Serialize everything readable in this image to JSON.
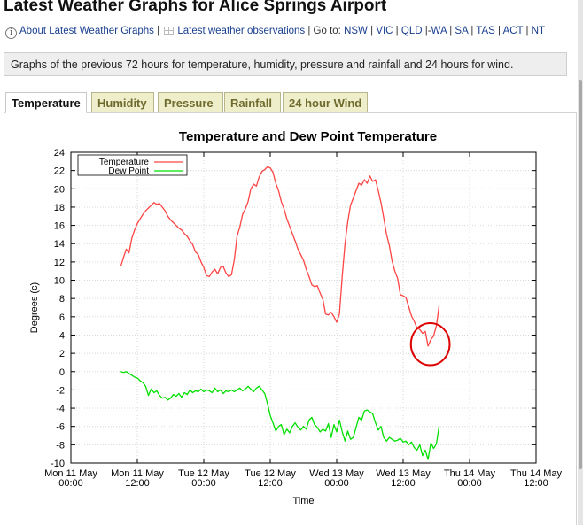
{
  "page": {
    "title": "Latest Weather Graphs for Alice Springs Airport",
    "about_link": "About Latest Weather Graphs",
    "sep1": " | ",
    "obs_link": "Latest weather observations",
    "goto_label": " | Go to: ",
    "states": [
      "NSW",
      "VIC",
      "QLD",
      "WA",
      "SA",
      "TAS",
      "ACT",
      "NT"
    ],
    "notice": "Graphs of the previous 72 hours for temperature, humidity, pressure and rainfall and 24 hours for wind."
  },
  "tabs": [
    {
      "label": "Temperature",
      "active": true
    },
    {
      "label": "Humidity",
      "active": false
    },
    {
      "label": "Pressure",
      "active": false
    },
    {
      "label": "Rainfall",
      "active": false
    },
    {
      "label": "24 hour Wind",
      "active": false
    }
  ],
  "colors": {
    "temperature": "#ff4444",
    "dew_point": "#00e000",
    "annotation": "#dd0000",
    "tab_bg": "#efeecb",
    "tab_text": "#6f6a2d",
    "link": "#1a3f8f"
  },
  "icons": {
    "info": "info-circle-icon",
    "table": "table-grid-icon"
  },
  "chart_data": {
    "type": "line",
    "title": "Temperature and Dew Point Temperature",
    "xlabel": "Time",
    "ylabel": "Degrees (c)",
    "xlim": [
      0,
      84
    ],
    "ylim": [
      -10,
      24
    ],
    "y_ticks": [
      24,
      22,
      20,
      18,
      16,
      14,
      12,
      10,
      8,
      6,
      4,
      2,
      0,
      -2,
      -4,
      -6,
      -8,
      -10
    ],
    "x_ticks": [
      {
        "h": 0,
        "line1": "Mon 11 May",
        "line2": "00:00"
      },
      {
        "h": 12,
        "line1": "Mon 11 May",
        "line2": "12:00"
      },
      {
        "h": 24,
        "line1": "Tue 12 May",
        "line2": "00:00"
      },
      {
        "h": 36,
        "line1": "Tue 12 May",
        "line2": "12:00"
      },
      {
        "h": 48,
        "line1": "Wed 13 May",
        "line2": "00:00"
      },
      {
        "h": 60,
        "line1": "Wed 13 May",
        "line2": "12:00"
      },
      {
        "h": 72,
        "line1": "Thu 14 May",
        "line2": "00:00"
      },
      {
        "h": 84,
        "line1": "Thu 14 May",
        "line2": "12:00"
      }
    ],
    "x_unit": "hours since Mon 11 May 00:00",
    "grid": true,
    "legend_position": "top-left",
    "series": [
      {
        "name": "Temperature",
        "color": "#ff4444",
        "points": [
          [
            9,
            11.5
          ],
          [
            9.5,
            12.5
          ],
          [
            10,
            13.4
          ],
          [
            10.5,
            13
          ],
          [
            11,
            14.6
          ],
          [
            11.5,
            15.5
          ],
          [
            12,
            16.2
          ],
          [
            12.5,
            16.7
          ],
          [
            13,
            17.2
          ],
          [
            13.5,
            17.6
          ],
          [
            14,
            17.9
          ],
          [
            14.5,
            18.2
          ],
          [
            15,
            18.5
          ],
          [
            15.5,
            18.3
          ],
          [
            16,
            18.4
          ],
          [
            16.5,
            18.0
          ],
          [
            17,
            17.6
          ],
          [
            17.5,
            17.0
          ],
          [
            18,
            16.6
          ],
          [
            18.5,
            16.3
          ],
          [
            19,
            16.0
          ],
          [
            19.5,
            15.7
          ],
          [
            20,
            15.5
          ],
          [
            20.5,
            15.1
          ],
          [
            21,
            14.8
          ],
          [
            21.5,
            14.3
          ],
          [
            22,
            13.9
          ],
          [
            22.5,
            13.1
          ],
          [
            23,
            12.8
          ],
          [
            23.5,
            12.0
          ],
          [
            24,
            11.4
          ],
          [
            24.5,
            10.5
          ],
          [
            25,
            10.4
          ],
          [
            25.5,
            10.9
          ],
          [
            26,
            11.2
          ],
          [
            26.5,
            10.7
          ],
          [
            27,
            11.4
          ],
          [
            27.5,
            11.5
          ],
          [
            28,
            10.8
          ],
          [
            28.5,
            10.4
          ],
          [
            29,
            10.6
          ],
          [
            29.5,
            12.2
          ],
          [
            30,
            14.8
          ],
          [
            30.5,
            15.8
          ],
          [
            31,
            17.2
          ],
          [
            31.5,
            17.8
          ],
          [
            32,
            18.6
          ],
          [
            32.5,
            20.0
          ],
          [
            33,
            20.5
          ],
          [
            33.5,
            20.3
          ],
          [
            34,
            21.3
          ],
          [
            34.5,
            21.9
          ],
          [
            35,
            22.1
          ],
          [
            35.5,
            22.4
          ],
          [
            36,
            22.3
          ],
          [
            36.5,
            21.8
          ],
          [
            37,
            20.6
          ],
          [
            37.5,
            19.8
          ],
          [
            38,
            18.6
          ],
          [
            38.5,
            17.8
          ],
          [
            39,
            16.7
          ],
          [
            39.5,
            15.9
          ],
          [
            40,
            15.1
          ],
          [
            40.5,
            14.3
          ],
          [
            41,
            13.4
          ],
          [
            41.5,
            12.8
          ],
          [
            42,
            12.2
          ],
          [
            42.5,
            11.2
          ],
          [
            43,
            10.4
          ],
          [
            43.5,
            9.5
          ],
          [
            44,
            9.3
          ],
          [
            44.5,
            9.4
          ],
          [
            45,
            8.6
          ],
          [
            45.5,
            7.9
          ],
          [
            46,
            6.3
          ],
          [
            46.5,
            6.2
          ],
          [
            47,
            6.5
          ],
          [
            47.5,
            6.0
          ],
          [
            48,
            5.4
          ],
          [
            48.5,
            6.3
          ],
          [
            49,
            10.5
          ],
          [
            49.5,
            14.0
          ],
          [
            50,
            16.4
          ],
          [
            50.5,
            18.2
          ],
          [
            51,
            19.0
          ],
          [
            51.5,
            19.8
          ],
          [
            52,
            20.6
          ],
          [
            52.5,
            20.4
          ],
          [
            53,
            21.0
          ],
          [
            53.5,
            20.6
          ],
          [
            54,
            21.4
          ],
          [
            54.5,
            20.8
          ],
          [
            55,
            21.0
          ],
          [
            55.5,
            19.8
          ],
          [
            56,
            18.5
          ],
          [
            56.5,
            16.8
          ],
          [
            57,
            15.0
          ],
          [
            57.5,
            13.8
          ],
          [
            58,
            12.1
          ],
          [
            58.5,
            11.0
          ],
          [
            59,
            10.2
          ],
          [
            59.5,
            8.4
          ],
          [
            60,
            8.3
          ],
          [
            60.5,
            8.1
          ],
          [
            61,
            7.1
          ],
          [
            61.5,
            6.1
          ],
          [
            62,
            5.5
          ],
          [
            62.5,
            4.8
          ],
          [
            63,
            4.6
          ],
          [
            63.5,
            4.2
          ],
          [
            64,
            4.4
          ],
          [
            64.5,
            2.8
          ],
          [
            65,
            3.5
          ],
          [
            65.5,
            3.9
          ],
          [
            66,
            5.0
          ],
          [
            66.5,
            7.2
          ]
        ]
      },
      {
        "name": "Dew Point",
        "color": "#00e000",
        "points": [
          [
            9,
            0.0
          ],
          [
            9.5,
            -0.1
          ],
          [
            10,
            0.0
          ],
          [
            10.5,
            -0.2
          ],
          [
            11,
            -0.4
          ],
          [
            11.5,
            -0.6
          ],
          [
            12,
            -0.7
          ],
          [
            12.5,
            -1.0
          ],
          [
            13,
            -1.2
          ],
          [
            13.5,
            -1.6
          ],
          [
            14,
            -2.6
          ],
          [
            14.5,
            -1.9
          ],
          [
            15,
            -2.3
          ],
          [
            15.5,
            -2.1
          ],
          [
            16,
            -2.6
          ],
          [
            16.5,
            -2.9
          ],
          [
            17,
            -2.8
          ],
          [
            17.5,
            -3.1
          ],
          [
            18,
            -2.9
          ],
          [
            18.5,
            -2.5
          ],
          [
            19,
            -2.7
          ],
          [
            19.5,
            -2.4
          ],
          [
            20,
            -2.8
          ],
          [
            20.5,
            -2.3
          ],
          [
            21,
            -2.5
          ],
          [
            21.5,
            -2.0
          ],
          [
            22,
            -2.3
          ],
          [
            22.5,
            -2.1
          ],
          [
            23,
            -2.2
          ],
          [
            23.5,
            -1.9
          ],
          [
            24,
            -2.2
          ],
          [
            24.5,
            -2.0
          ],
          [
            25,
            -2.1
          ],
          [
            25.5,
            -2.3
          ],
          [
            26,
            -1.8
          ],
          [
            26.5,
            -2.2
          ],
          [
            27,
            -2.0
          ],
          [
            27.5,
            -2.4
          ],
          [
            28,
            -2.1
          ],
          [
            28.5,
            -2.2
          ],
          [
            29,
            -2.0
          ],
          [
            29.5,
            -2.2
          ],
          [
            30,
            -2.0
          ],
          [
            30.5,
            -1.8
          ],
          [
            31,
            -2.1
          ],
          [
            31.5,
            -1.9
          ],
          [
            32,
            -1.6
          ],
          [
            32.5,
            -1.9
          ],
          [
            33,
            -2.2
          ],
          [
            33.5,
            -1.8
          ],
          [
            34,
            -1.6
          ],
          [
            34.5,
            -2.0
          ],
          [
            35,
            -2.4
          ],
          [
            35.5,
            -3.5
          ],
          [
            36,
            -4.8
          ],
          [
            36.5,
            -5.6
          ],
          [
            37,
            -6.5
          ],
          [
            37.5,
            -6.0
          ],
          [
            38,
            -5.8
          ],
          [
            38.5,
            -6.9
          ],
          [
            39,
            -6.3
          ],
          [
            39.5,
            -6.7
          ],
          [
            40,
            -6.0
          ],
          [
            40.5,
            -5.6
          ],
          [
            41,
            -6.1
          ],
          [
            41.5,
            -6.4
          ],
          [
            42,
            -6.0
          ],
          [
            42.5,
            -6.3
          ],
          [
            43,
            -5.3
          ],
          [
            43.5,
            -5.0
          ],
          [
            44,
            -5.8
          ],
          [
            44.5,
            -6.1
          ],
          [
            45,
            -6.6
          ],
          [
            45.5,
            -6.3
          ],
          [
            46,
            -6.5
          ],
          [
            46.5,
            -5.7
          ],
          [
            47,
            -7.2
          ],
          [
            47.5,
            -5.8
          ],
          [
            48,
            -6.6
          ],
          [
            48.5,
            -5.3
          ],
          [
            49,
            -6.6
          ],
          [
            49.5,
            -7.6
          ],
          [
            50,
            -6.5
          ],
          [
            50.5,
            -7.4
          ],
          [
            51,
            -7.2
          ],
          [
            51.5,
            -6.1
          ],
          [
            52,
            -5.0
          ],
          [
            52.5,
            -5.3
          ],
          [
            53,
            -4.3
          ],
          [
            53.5,
            -4.2
          ],
          [
            54,
            -4.4
          ],
          [
            54.5,
            -4.6
          ],
          [
            55,
            -5.6
          ],
          [
            55.5,
            -6.4
          ],
          [
            56,
            -6.0
          ],
          [
            56.5,
            -7.2
          ],
          [
            57,
            -7.6
          ],
          [
            57.5,
            -7.2
          ],
          [
            58,
            -7.4
          ],
          [
            58.5,
            -7.6
          ],
          [
            59,
            -7.5
          ],
          [
            59.5,
            -7.3
          ],
          [
            60,
            -7.7
          ],
          [
            60.5,
            -7.6
          ],
          [
            61,
            -8.0
          ],
          [
            61.5,
            -7.7
          ],
          [
            62,
            -8.3
          ],
          [
            62.5,
            -8.6
          ],
          [
            63,
            -8.0
          ],
          [
            63.5,
            -9.2
          ],
          [
            64,
            -8.6
          ],
          [
            64.5,
            -9.6
          ],
          [
            65,
            -7.8
          ],
          [
            65.5,
            -8.4
          ],
          [
            66,
            -7.9
          ],
          [
            66.5,
            -6.0
          ]
        ]
      }
    ],
    "annotation": {
      "shape": "circle",
      "cx": 64.9,
      "cy": 3.0,
      "rx": 3.5,
      "ry": 2.3
    }
  }
}
